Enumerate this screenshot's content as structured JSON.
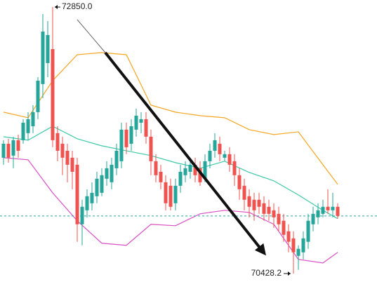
{
  "chart_data": {
    "type": "candlestick",
    "ylim": [
      70288,
      72914
    ],
    "up_color": "#26a69a",
    "down_color": "#ef5350",
    "candles": {
      "open": [
        71481,
        71608,
        71500,
        71640,
        71640,
        71704,
        71767,
        71895,
        72150,
        72341,
        72468,
        71704,
        71608,
        71544,
        71481,
        71417,
        70876,
        71003,
        71067,
        71131,
        71162,
        71290,
        71258,
        71385,
        71449,
        71736,
        71608,
        71736,
        71799,
        71831,
        71672,
        71449,
        71353,
        71258,
        71226,
        71067,
        71226,
        71322,
        71353,
        71417,
        71385,
        71290,
        71449,
        71544,
        71608,
        71481,
        71513,
        71449,
        71322,
        71226,
        71131,
        71099,
        71099,
        71067,
        71035,
        71003,
        70971,
        70908,
        70812,
        70748,
        70589,
        70621,
        70717,
        70876,
        70939,
        70971,
        71035,
        71003,
        71035
      ],
      "high": [
        71640,
        71653,
        71672,
        71691,
        71831,
        71895,
        71959,
        72213,
        72787,
        72723,
        72850,
        71767,
        71672,
        71608,
        71544,
        71481,
        71099,
        71194,
        71258,
        71353,
        71385,
        71449,
        71481,
        71608,
        71799,
        71799,
        71831,
        71927,
        71895,
        71895,
        71736,
        71513,
        71417,
        71322,
        71290,
        71290,
        71417,
        71449,
        71481,
        71481,
        71449,
        71513,
        71608,
        71704,
        71672,
        71544,
        71576,
        71513,
        71385,
        71290,
        71194,
        71162,
        71162,
        71131,
        71099,
        71067,
        71035,
        70971,
        70876,
        70812,
        70685,
        70812,
        70971,
        71035,
        71067,
        71099,
        71194,
        71162,
        71067
      ],
      "low": [
        71417,
        71436,
        71385,
        71481,
        71608,
        71640,
        71704,
        71831,
        72022,
        72213,
        71576,
        71449,
        71322,
        71258,
        71194,
        70717,
        70685,
        70939,
        71003,
        71067,
        71131,
        71226,
        71194,
        71322,
        71385,
        71513,
        71544,
        71672,
        71704,
        71608,
        71322,
        71258,
        71194,
        71003,
        71003,
        71003,
        71162,
        71258,
        71290,
        71258,
        71226,
        71258,
        71385,
        71481,
        71449,
        71449,
        71353,
        71226,
        71099,
        71003,
        70939,
        70908,
        70971,
        70908,
        70908,
        70844,
        70812,
        70717,
        70621,
        70428.2,
        70462,
        70557,
        70653,
        70812,
        70876,
        70939,
        70971,
        70939,
        70927
      ],
      "close": [
        71608,
        71481,
        71640,
        71544,
        71799,
        71831,
        71895,
        72181,
        72627,
        72596,
        71640,
        71544,
        71481,
        71417,
        71353,
        70876,
        71035,
        71131,
        71162,
        71290,
        71322,
        71385,
        71417,
        71544,
        71736,
        71576,
        71767,
        71863,
        71831,
        71672,
        71449,
        71322,
        71258,
        71067,
        71035,
        71226,
        71353,
        71385,
        71417,
        71322,
        71258,
        71449,
        71544,
        71640,
        71513,
        71513,
        71417,
        71322,
        71194,
        71099,
        71035,
        71003,
        71035,
        70971,
        70971,
        70939,
        70876,
        70780,
        70717,
        70621,
        70653,
        70748,
        70908,
        70971,
        71003,
        71035,
        71003,
        71035,
        70952
      ]
    },
    "bands": {
      "x": [
        0,
        5,
        10,
        15,
        20,
        25,
        30,
        35,
        40,
        45,
        50,
        55,
        60,
        65,
        68
      ],
      "series": [
        {
          "color": "#f5a623",
          "values": [
            71895,
            71844,
            72181,
            72417,
            72436,
            72417,
            71959,
            71895,
            71863,
            71844,
            71736,
            71691,
            71716,
            71417,
            71239
          ]
        },
        {
          "color": "#3ec9a7",
          "values": [
            71672,
            71640,
            71767,
            71653,
            71589,
            71544,
            71500,
            71436,
            71385,
            71449,
            71347,
            71271,
            71143,
            71003,
            70927
          ]
        },
        {
          "color": "#d94fc4",
          "values": [
            71481,
            71462,
            71162,
            70908,
            70704,
            70685,
            70876,
            70863,
            70971,
            71003,
            70984,
            70876,
            70557,
            70525,
            70621
          ]
        }
      ]
    },
    "price_line": {
      "value": 70952,
      "color": "#26a69a"
    },
    "annotations": [
      {
        "value": 72850,
        "label": "72850.0",
        "side": "high"
      },
      {
        "value": 70428.2,
        "label": "70428.2",
        "side": "low"
      }
    ]
  }
}
